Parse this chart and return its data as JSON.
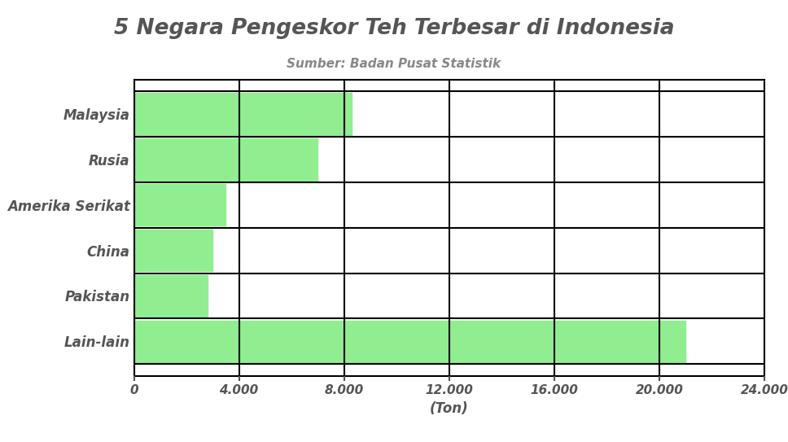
{
  "title": "5 Negara Pengeskor Teh Terbesar di Indonesia",
  "subtitle": "Sumber: Badan Pusat Statistik",
  "categories": [
    "Malaysia",
    "Rusia",
    "Amerika Serikat",
    "China",
    "Pakistan",
    "Lain-lain"
  ],
  "values": [
    8300,
    7000,
    3500,
    3000,
    2800,
    21000
  ],
  "bar_color": "#90EE90",
  "xlabel": "(Ton)",
  "xlim": [
    0,
    24000
  ],
  "xticks": [
    0,
    4000,
    8000,
    12000,
    16000,
    20000,
    24000
  ],
  "background_color": "#ffffff",
  "title_fontsize": 19,
  "subtitle_fontsize": 11,
  "label_fontsize": 12,
  "xlabel_fontsize": 12,
  "tick_fontsize": 11,
  "title_color": "#555555",
  "subtitle_color": "#888888",
  "label_color": "#555555",
  "tick_color": "#555555",
  "grid_color": "#000000",
  "grid_linewidth": 1.5,
  "bar_height": 0.92
}
